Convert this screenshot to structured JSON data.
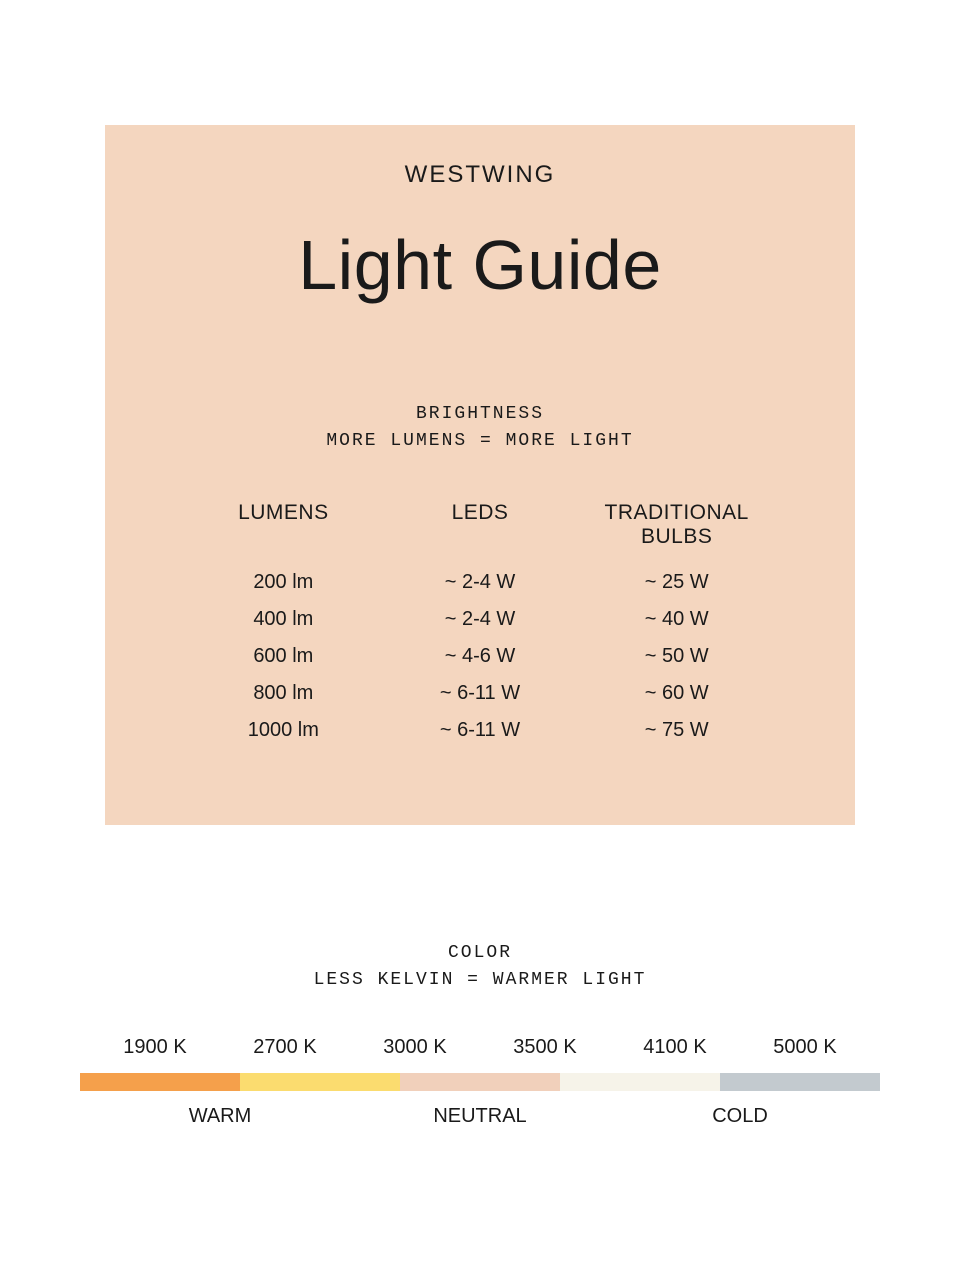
{
  "card": {
    "background_color": "#f4d6bf",
    "brand": "WESTWING",
    "title": "Light Guide",
    "brightness_label_1": "BRIGHTNESS",
    "brightness_label_2": "MORE LUMENS = MORE LIGHT",
    "columns": {
      "c0": "LUMENS",
      "c1": "LEDS",
      "c2": "TRADITIONAL BULBS"
    },
    "rows": [
      {
        "lumens": "200 lm",
        "leds": "~ 2-4 W",
        "trad": "~ 25 W"
      },
      {
        "lumens": "400 lm",
        "leds": "~ 2-4 W",
        "trad": "~ 40 W"
      },
      {
        "lumens": "600 lm",
        "leds": "~ 4-6 W",
        "trad": "~ 50 W"
      },
      {
        "lumens": "800 lm",
        "leds": "~ 6-11 W",
        "trad": "~ 60 W"
      },
      {
        "lumens": "1000 lm",
        "leds": "~ 6-11 W",
        "trad": "~ 75 W"
      }
    ]
  },
  "color": {
    "label_1": "COLOR",
    "label_2": "LESS KELVIN = WARMER LIGHT",
    "kelvin": [
      "1900 K",
      "2700 K",
      "3000 K",
      "3500 K",
      "4100 K",
      "5000 K"
    ],
    "segments": [
      {
        "color": "#f5a04b",
        "width_pct": 20
      },
      {
        "color": "#fbdc6f",
        "width_pct": 20
      },
      {
        "color": "#f1d0bb",
        "width_pct": 20
      },
      {
        "color": "#f6f3e9",
        "width_pct": 20
      },
      {
        "color": "#c3cacf",
        "width_pct": 20
      }
    ],
    "categories": [
      {
        "label": "WARM",
        "flex": 2
      },
      {
        "label": "NEUTRAL",
        "flex": 2
      },
      {
        "label": "COLD",
        "flex": 2
      }
    ]
  }
}
